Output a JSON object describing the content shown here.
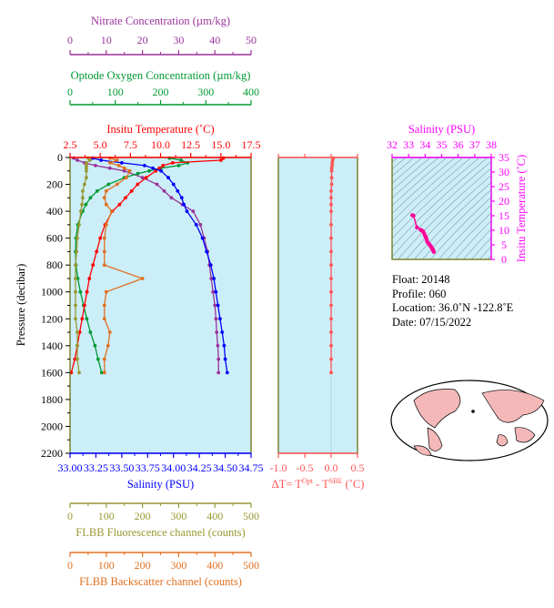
{
  "colors": {
    "nitrate": "#993399",
    "oxygen": "#009933",
    "temperature": "#ff0000",
    "salinity": "#0000ff",
    "fluorescence": "#999933",
    "backscatter": "#e07020",
    "dT": "#ff5555",
    "ts_axis": "#ff00ff",
    "ts_point": "#ff0099",
    "plot_bg": "#cceef8",
    "frame": "#666600"
  },
  "chart_data": [
    {
      "type": "line",
      "panel": "profiles",
      "ylabel": "Pressure (decibar)",
      "ylim": [
        2200,
        0
      ],
      "yticks": [
        "0",
        "200",
        "400",
        "600",
        "800",
        "1000",
        "1200",
        "1400",
        "1600",
        "1800",
        "2000",
        "2200"
      ],
      "axes": {
        "nitrate": {
          "label": "Nitrate Concentration (µm/kg)",
          "lim": [
            0,
            50
          ],
          "ticks": [
            "0",
            "10",
            "20",
            "30",
            "40",
            "50"
          ]
        },
        "oxygen": {
          "label": "Optode Oxygen Concentration (µm/kg)",
          "lim": [
            0,
            400
          ],
          "ticks": [
            "0",
            "100",
            "200",
            "300",
            "400"
          ]
        },
        "temperature": {
          "label": "Insitu Temperature (˚C)",
          "lim": [
            2.5,
            17.5
          ],
          "ticks": [
            "2.5",
            "5.0",
            "7.5",
            "10.0",
            "12.5",
            "15.0",
            "17.5"
          ]
        },
        "salinity": {
          "label": "Salinity (PSU)",
          "lim": [
            33.0,
            34.75
          ],
          "ticks": [
            "33.00",
            "33.25",
            "33.50",
            "33.75",
            "34.00",
            "34.25",
            "34.50",
            "34.75"
          ]
        },
        "fluorescence": {
          "label": "FLBB Fluorescence channel (counts)",
          "lim": [
            0,
            500
          ],
          "ticks": [
            "0",
            "100",
            "200",
            "300",
            "400",
            "500"
          ]
        },
        "backscatter": {
          "label": "FLBB Backscatter channel (counts)",
          "lim": [
            0,
            500
          ],
          "ticks": [
            "0",
            "100",
            "200",
            "300",
            "400",
            "500"
          ]
        }
      },
      "series": [
        {
          "key": "nitrate",
          "p": [
            5,
            20,
            40,
            60,
            80,
            100,
            150,
            200,
            250,
            300,
            350,
            400,
            500,
            600,
            700,
            800,
            900,
            1000,
            1100,
            1200,
            1300,
            1400,
            1500,
            1600
          ],
          "v": [
            1,
            2,
            4,
            7,
            11,
            15,
            20,
            24,
            26,
            28,
            31,
            34,
            36,
            37,
            38,
            38.5,
            39,
            39.5,
            40,
            40.3,
            40.5,
            40.8,
            41,
            41
          ]
        },
        {
          "key": "oxygen",
          "p": [
            5,
            20,
            40,
            60,
            80,
            100,
            120,
            150,
            200,
            250,
            300,
            350,
            400,
            500,
            600,
            700,
            800,
            900,
            1000,
            1100,
            1200,
            1300,
            1400,
            1500,
            1600
          ],
          "v": [
            220,
            245,
            260,
            240,
            200,
            175,
            150,
            120,
            85,
            60,
            45,
            35,
            28,
            17,
            13,
            12,
            13,
            17,
            23,
            30,
            37,
            45,
            55,
            62,
            70
          ]
        },
        {
          "key": "temperature",
          "p": [
            5,
            20,
            40,
            60,
            80,
            100,
            150,
            200,
            250,
            300,
            350,
            400,
            500,
            600,
            700,
            800,
            900,
            1000,
            1100,
            1200,
            1300,
            1400,
            1500,
            1600
          ],
          "v": [
            15.2,
            15.0,
            11.0,
            10.2,
            9.9,
            9.6,
            8.8,
            8.1,
            7.6,
            7.1,
            6.6,
            6.0,
            5.4,
            5.0,
            4.7,
            4.4,
            4.1,
            3.9,
            3.7,
            3.5,
            3.3,
            3.1,
            2.9,
            2.6
          ]
        },
        {
          "key": "salinity",
          "p": [
            5,
            20,
            40,
            60,
            80,
            100,
            150,
            200,
            250,
            300,
            350,
            400,
            500,
            600,
            700,
            800,
            900,
            1000,
            1100,
            1200,
            1300,
            1400,
            1500,
            1600
          ],
          "v": [
            33.22,
            33.3,
            33.5,
            33.72,
            33.8,
            33.88,
            33.95,
            34.0,
            34.04,
            34.08,
            34.1,
            34.13,
            34.22,
            34.28,
            34.32,
            34.36,
            34.39,
            34.41,
            34.43,
            34.45,
            34.47,
            34.49,
            34.5,
            34.52
          ]
        },
        {
          "key": "fluorescence",
          "p": [
            5,
            20,
            40,
            60,
            80,
            100,
            150,
            200,
            250,
            300,
            350,
            400,
            500,
            600,
            700,
            800,
            900,
            1000,
            1100,
            1200,
            1300,
            1400,
            1500,
            1600
          ],
          "v": [
            50,
            55,
            45,
            45,
            45,
            45,
            45,
            40,
            35,
            35,
            33,
            30,
            25,
            20,
            18,
            15,
            15,
            15,
            15,
            15,
            20,
            20,
            20,
            25
          ]
        },
        {
          "key": "backscatter",
          "p": [
            5,
            20,
            40,
            60,
            80,
            100,
            150,
            200,
            250,
            300,
            350,
            400,
            500,
            600,
            700,
            800,
            900,
            1000,
            1100,
            1200,
            1300,
            1400,
            1500,
            1600
          ],
          "v": [
            110,
            130,
            110,
            135,
            150,
            165,
            155,
            130,
            100,
            95,
            100,
            115,
            100,
            95,
            95,
            95,
            200,
            100,
            95,
            95,
            110,
            105,
            95,
            95
          ]
        }
      ]
    },
    {
      "type": "line",
      "panel": "delta_t",
      "xlabel": "ΔT= Tᴼᵖᵗ - Tˢᴮᴱ (˚C)",
      "xlabel_main": "ΔT= T",
      "xlabel_sup1": "Opt",
      "xlabel_mid": " - T",
      "xlabel_sup2": "SBE",
      "xlabel_end": " (˚C)",
      "xlim": [
        -1.0,
        0.5
      ],
      "xticks": [
        "-1.0",
        "-0.5",
        "0.0",
        "0.5"
      ],
      "series": [
        {
          "name": "",
          "p": [
            5,
            20,
            40,
            60,
            80,
            100,
            150,
            200,
            250,
            300,
            350,
            400,
            500,
            600,
            700,
            800,
            900,
            1000,
            1100,
            1200,
            1300,
            1400,
            1500,
            1600
          ],
          "v": [
            0.04,
            0.03,
            0.02,
            0.02,
            0.01,
            0.01,
            0.01,
            0.01,
            0.0,
            0.0,
            0.0,
            0.0,
            0.0,
            0.0,
            0.0,
            0.0,
            0.0,
            0.0,
            0.0,
            0.0,
            0.0,
            0.0,
            0.0,
            0.0
          ]
        }
      ]
    },
    {
      "type": "scatter",
      "panel": "ts_diagram",
      "xlabel": "Salinity (PSU)",
      "ylabel": "Insitu Temperature (˚C)",
      "xlim": [
        32,
        38
      ],
      "ylim": [
        0,
        35
      ],
      "xticks": [
        "32",
        "33",
        "34",
        "35",
        "36",
        "37",
        "38"
      ],
      "yticks": [
        "0",
        "5",
        "10",
        "15",
        "20",
        "25",
        "30",
        "35"
      ],
      "x": [
        33.22,
        33.3,
        33.5,
        33.72,
        33.8,
        33.88,
        33.95,
        34.0,
        34.04,
        34.08,
        34.1,
        34.13,
        34.22,
        34.28,
        34.32,
        34.36,
        34.39,
        34.41,
        34.43,
        34.45,
        34.47,
        34.49,
        34.5,
        34.52
      ],
      "y": [
        15.2,
        15.0,
        11.0,
        10.2,
        9.9,
        9.6,
        8.8,
        8.1,
        7.6,
        7.1,
        6.6,
        6.0,
        5.4,
        5.0,
        4.7,
        4.4,
        4.1,
        3.9,
        3.7,
        3.5,
        3.3,
        3.1,
        2.9,
        2.6
      ]
    }
  ],
  "info": {
    "float": "Float:  20148",
    "profile": "Profile:  060",
    "location": "Location:  36.0˚N  -122.8˚E",
    "date": "Date:  07/15/2022"
  }
}
